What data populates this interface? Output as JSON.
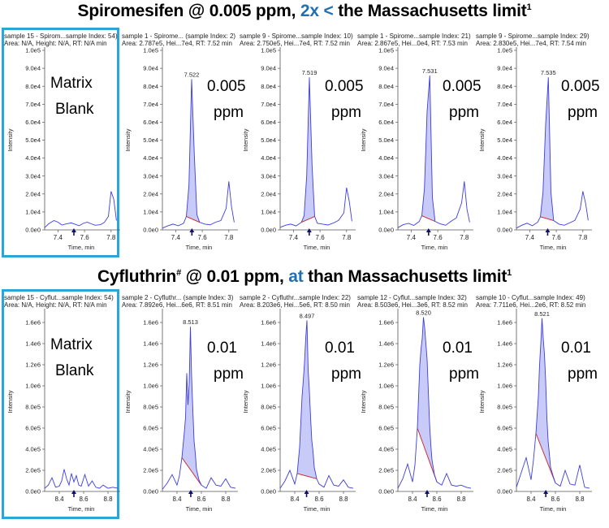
{
  "rows": [
    {
      "title": {
        "pre": "Spiromesifen @ 0.005 ppm, ",
        "hl": "2x <",
        "post": " the  Massachusetts limit",
        "sup": "1"
      },
      "panels": [
        {
          "header1": "sample 15 - Spirom...sample Index: 54)",
          "header2": "Area: N/A, Height: N/A, RT: N/A min",
          "big_line1": "Matrix",
          "big_line2": "Blank",
          "peak_label": "",
          "y_ticks": [
            "1.0e5",
            "9.0e4",
            "8.0e4",
            "7.0e4",
            "6.0e4",
            "5.0e4",
            "4.0e4",
            "3.0e4",
            "2.0e4",
            "1.0e4",
            "0.0e0"
          ],
          "x_ticks": [
            "7.4",
            "7.6",
            "7.8"
          ],
          "x_label": "Time, min",
          "y_label": "Intensity"
        },
        {
          "header1": "sample 1 - Spirome... (sample Index: 2)",
          "header2": "Area: 2.787e5, Hei...7e4, RT: 7.52 min",
          "big_line1": "0.005",
          "big_line2": "ppm",
          "peak_label": "7.522",
          "y_ticks": [
            "1.0e5",
            "9.0e4",
            "8.0e4",
            "7.0e4",
            "6.0e4",
            "5.0e4",
            "4.0e4",
            "3.0e4",
            "2.0e4",
            "1.0e4",
            "0.0e0"
          ],
          "x_ticks": [
            "7.4",
            "7.6",
            "7.8"
          ],
          "x_label": "Time, min",
          "y_label": "Intensity"
        },
        {
          "header1": "sample 9 - Spirome...sample Index: 10)",
          "header2": "Area: 2.750e5, Hei...7e4, RT: 7.52 min",
          "big_line1": "0.005",
          "big_line2": "ppm",
          "peak_label": "7.519",
          "y_ticks": [
            "1.0e5",
            "9.0e4",
            "8.0e4",
            "7.0e4",
            "6.0e4",
            "5.0e4",
            "4.0e4",
            "3.0e4",
            "2.0e4",
            "1.0e4",
            "0.0e0"
          ],
          "x_ticks": [
            "7.4",
            "7.6",
            "7.8"
          ],
          "x_label": "Time, min",
          "y_label": "Intensity"
        },
        {
          "header1": "sample 1 - Spirome...sample Index: 21)",
          "header2": "Area: 2.867e5, Hei...0e4, RT: 7.53 min",
          "big_line1": "0.005",
          "big_line2": "ppm",
          "peak_label": "7.531",
          "y_ticks": [
            "1.0e5",
            "9.0e4",
            "8.0e4",
            "7.0e4",
            "6.0e4",
            "5.0e4",
            "4.0e4",
            "3.0e4",
            "2.0e4",
            "1.0e4",
            "0.0e0"
          ],
          "x_ticks": [
            "7.4",
            "7.6",
            "7.8"
          ],
          "x_label": "Time, min",
          "y_label": "Intensity"
        },
        {
          "header1": "sample 9 - Spirome...sample Index: 29)",
          "header2": "Area: 2.830e5, Hei...7e4, RT: 7.54 min",
          "big_line1": "0.005",
          "big_line2": "ppm",
          "peak_label": "7.535",
          "y_ticks": [
            "1.0e5",
            "9.0e4",
            "8.0e4",
            "7.0e4",
            "6.0e4",
            "5.0e4",
            "4.0e4",
            "3.0e4",
            "2.0e4",
            "1.0e4",
            "0.0e0"
          ],
          "x_ticks": [
            "7.4",
            "7.6",
            "7.8"
          ],
          "x_label": "Time, min",
          "y_label": "Intensity"
        }
      ]
    },
    {
      "title": {
        "pre": "Cyfluthrin",
        "pre_sup": "#",
        "pre2": " @ 0.01 ppm, ",
        "hl": "at",
        "post": " than  Massachusetts limit",
        "sup": "1"
      },
      "panels": [
        {
          "header1": "sample 15 - Cyflut...sample Index: 54)",
          "header2": "Area: N/A, Height: N/A, RT: N/A min",
          "big_line1": "Matrix",
          "big_line2": "Blank",
          "peak_label": "",
          "y_ticks": [
            "1.6e6",
            "1.4e6",
            "1.2e6",
            "1.0e6",
            "8.0e5",
            "6.0e5",
            "4.0e5",
            "2.0e5",
            "0.0e0"
          ],
          "x_ticks": [
            "8.4",
            "8.6",
            "8.8"
          ],
          "x_label": "Time, min",
          "y_label": "Intensity"
        },
        {
          "header1": "sample 2 - Cyfluthr... (sample Index: 3)",
          "header2": "Area: 7.892e6, Hei...6e6, RT: 8.51 min",
          "big_line1": "0.01",
          "big_line2": "ppm",
          "peak_label": "8.513",
          "y_ticks": [
            "1.6e6",
            "1.4e6",
            "1.2e6",
            "1.0e6",
            "8.0e5",
            "6.0e5",
            "4.0e5",
            "2.0e5",
            "0.0e0"
          ],
          "x_ticks": [
            "8.4",
            "8.6",
            "8.8"
          ],
          "x_label": "Time, min",
          "y_label": "Intensity"
        },
        {
          "header1": "sample 2 - Cyfluthr...sample Index: 22)",
          "header2": "Area: 8.203e6, Hei...5e6, RT: 8.50 min",
          "big_line1": "0.01",
          "big_line2": "ppm",
          "peak_label": "8.497",
          "y_ticks": [
            "1.6e6",
            "1.4e6",
            "1.2e6",
            "1.0e6",
            "8.0e5",
            "6.0e5",
            "4.0e5",
            "2.0e5",
            "0.0e0"
          ],
          "x_ticks": [
            "8.4",
            "8.6",
            "8.8"
          ],
          "x_label": "Time, min",
          "y_label": "Intensity"
        },
        {
          "header1": "sample 12 - Cyflut...sample Index: 32)",
          "header2": "Area: 8.503e6, Hei...3e6, RT: 8.52 min",
          "big_line1": "0.01",
          "big_line2": "ppm",
          "peak_label": "8.520",
          "y_ticks": [
            "1.6e6",
            "1.4e6",
            "1.2e6",
            "1.0e6",
            "8.0e5",
            "6.0e5",
            "4.0e5",
            "2.0e5",
            "0.0e0"
          ],
          "x_ticks": [
            "8.4",
            "8.6",
            "8.8"
          ],
          "x_label": "Time, min",
          "y_label": "Intensity"
        },
        {
          "header1": "sample 10 - Cyflut...sample Index: 49)",
          "header2": "Area: 7.711e6, Hei...2e6, RT: 8.52 min",
          "big_line1": "0.01",
          "big_line2": "ppm",
          "peak_label": "8.521",
          "y_ticks": [
            "1.6e6",
            "1.4e6",
            "1.2e6",
            "1.0e6",
            "8.0e5",
            "6.0e5",
            "4.0e5",
            "2.0e5",
            "0.0e0"
          ],
          "x_ticks": [
            "8.4",
            "8.6",
            "8.8"
          ],
          "x_label": "Time, min",
          "y_label": "Intensity"
        }
      ]
    }
  ],
  "chart_data": [
    {
      "type": "line",
      "title": "Spiromesifen @ 0.005 ppm, 2x < the Massachusetts limit",
      "xlabel": "Time, min",
      "ylabel": "Intensity",
      "xlim": [
        7.3,
        7.85
      ],
      "ylim": [
        0,
        100000
      ],
      "series": [
        {
          "name": "Matrix Blank",
          "x": [
            7.3,
            7.33,
            7.37,
            7.4,
            7.43,
            7.46,
            7.5,
            7.53,
            7.56,
            7.59,
            7.62,
            7.65,
            7.68,
            7.72,
            7.75,
            7.78,
            7.8,
            7.82,
            7.84
          ],
          "y": [
            1200,
            3400,
            5200,
            4300,
            2700,
            3300,
            3900,
            3100,
            2300,
            3600,
            4300,
            3400,
            2600,
            2900,
            4200,
            7500,
            21500,
            17000,
            5200
          ]
        },
        {
          "name": "0.005 ppm (sample Index 2)",
          "peak_rt": 7.522,
          "area": 278700,
          "x": [
            7.3,
            7.34,
            7.38,
            7.42,
            7.46,
            7.48,
            7.5,
            7.52,
            7.54,
            7.56,
            7.58,
            7.62,
            7.66,
            7.7,
            7.74,
            7.78,
            7.8,
            7.82,
            7.84
          ],
          "y": [
            1000,
            2200,
            3200,
            2300,
            3700,
            7500,
            25000,
            84000,
            42000,
            8500,
            4200,
            3200,
            2800,
            4300,
            5200,
            12000,
            27000,
            13000,
            4200
          ]
        },
        {
          "name": "0.005 ppm (sample Index 10)",
          "peak_rt": 7.519,
          "area": 275000,
          "x": [
            7.3,
            7.34,
            7.38,
            7.42,
            7.46,
            7.48,
            7.5,
            7.52,
            7.54,
            7.56,
            7.58,
            7.62,
            7.66,
            7.7,
            7.74,
            7.78,
            7.8,
            7.82,
            7.84
          ],
          "y": [
            1400,
            2600,
            3200,
            2200,
            4200,
            7900,
            30000,
            85000,
            36000,
            7500,
            3700,
            3200,
            2700,
            3800,
            5300,
            9500,
            23500,
            16000,
            4800
          ]
        },
        {
          "name": "0.005 ppm (sample Index 21)",
          "peak_rt": 7.531,
          "area": 286700,
          "x": [
            7.3,
            7.34,
            7.38,
            7.42,
            7.46,
            7.48,
            7.5,
            7.52,
            7.54,
            7.56,
            7.58,
            7.62,
            7.66,
            7.7,
            7.74,
            7.78,
            7.8,
            7.82,
            7.84
          ],
          "y": [
            1200,
            2900,
            3600,
            2500,
            4600,
            7900,
            23000,
            66000,
            86000,
            18000,
            4700,
            3300,
            2600,
            4800,
            6700,
            15000,
            27000,
            11500,
            4200
          ]
        },
        {
          "name": "0.005 ppm (sample Index 29)",
          "peak_rt": 7.535,
          "area": 283000,
          "x": [
            7.3,
            7.34,
            7.38,
            7.42,
            7.46,
            7.48,
            7.5,
            7.52,
            7.54,
            7.56,
            7.58,
            7.62,
            7.66,
            7.7,
            7.74,
            7.78,
            7.8,
            7.82,
            7.84
          ],
          "y": [
            1000,
            2600,
            3700,
            2300,
            4300,
            7300,
            21000,
            59000,
            85000,
            21000,
            5200,
            3200,
            2600,
            3900,
            5300,
            11500,
            21500,
            15000,
            5300
          ]
        }
      ]
    },
    {
      "type": "line",
      "title": "Cyfluthrin @ 0.01 ppm, at than Massachusetts limit",
      "xlabel": "Time, min",
      "ylabel": "Intensity",
      "xlim": [
        8.28,
        8.88
      ],
      "ylim": [
        0,
        1700000
      ],
      "series": [
        {
          "name": "Matrix Blank",
          "x": [
            8.28,
            8.31,
            8.34,
            8.37,
            8.4,
            8.42,
            8.44,
            8.46,
            8.48,
            8.5,
            8.52,
            8.54,
            8.56,
            8.58,
            8.61,
            8.64,
            8.67,
            8.7,
            8.73,
            8.76,
            8.8,
            8.84,
            8.88
          ],
          "y": [
            30000,
            60000,
            130000,
            40000,
            50000,
            100000,
            210000,
            120000,
            60000,
            170000,
            90000,
            150000,
            60000,
            50000,
            160000,
            50000,
            100000,
            40000,
            30000,
            60000,
            30000,
            40000,
            30000
          ]
        },
        {
          "name": "0.01 ppm (sample Index 3)",
          "peak_rt": 8.513,
          "area": 7892000,
          "x": [
            8.28,
            8.32,
            8.36,
            8.4,
            8.42,
            8.44,
            8.46,
            8.47,
            8.48,
            8.49,
            8.5,
            8.51,
            8.52,
            8.53,
            8.54,
            8.55,
            8.56,
            8.58,
            8.6,
            8.64,
            8.68,
            8.72,
            8.76,
            8.8,
            8.84,
            8.88
          ],
          "y": [
            20000,
            80000,
            160000,
            60000,
            150000,
            320000,
            560000,
            700000,
            1120000,
            820000,
            1020000,
            1560000,
            1080000,
            770000,
            480000,
            360000,
            210000,
            110000,
            60000,
            30000,
            130000,
            60000,
            50000,
            120000,
            40000,
            30000
          ]
        },
        {
          "name": "0.01 ppm (sample Index 22)",
          "peak_rt": 8.497,
          "area": 8203000,
          "x": [
            8.28,
            8.32,
            8.36,
            8.4,
            8.42,
            8.44,
            8.46,
            8.47,
            8.48,
            8.49,
            8.5,
            8.51,
            8.52,
            8.53,
            8.54,
            8.55,
            8.56,
            8.58,
            8.6,
            8.64,
            8.68,
            8.72,
            8.76,
            8.8,
            8.84,
            8.88
          ],
          "y": [
            30000,
            100000,
            200000,
            70000,
            170000,
            420000,
            900000,
            1050000,
            1220000,
            1450000,
            1620000,
            1150000,
            950000,
            700000,
            480000,
            380000,
            230000,
            120000,
            70000,
            40000,
            150000,
            60000,
            50000,
            110000,
            40000,
            30000
          ]
        },
        {
          "name": "0.01 ppm (sample Index 32)",
          "peak_rt": 8.52,
          "area": 8503000,
          "x": [
            8.28,
            8.32,
            8.36,
            8.4,
            8.42,
            8.44,
            8.46,
            8.47,
            8.48,
            8.49,
            8.5,
            8.51,
            8.52,
            8.53,
            8.54,
            8.55,
            8.56,
            8.58,
            8.6,
            8.64,
            8.68,
            8.72,
            8.76,
            8.8,
            8.84,
            8.88
          ],
          "y": [
            30000,
            120000,
            260000,
            90000,
            250000,
            600000,
            1200000,
            1350000,
            1450000,
            1650000,
            1550000,
            1400000,
            1250000,
            950000,
            650000,
            450000,
            300000,
            160000,
            90000,
            60000,
            170000,
            60000,
            50000,
            60000,
            40000,
            30000
          ]
        },
        {
          "name": "0.01 ppm (sample Index 49)",
          "peak_rt": 8.521,
          "area": 7711000,
          "x": [
            8.28,
            8.32,
            8.36,
            8.4,
            8.42,
            8.44,
            8.46,
            8.47,
            8.48,
            8.49,
            8.5,
            8.51,
            8.52,
            8.53,
            8.54,
            8.55,
            8.56,
            8.58,
            8.6,
            8.64,
            8.68,
            8.72,
            8.76,
            8.8,
            8.84,
            8.88
          ],
          "y": [
            40000,
            180000,
            320000,
            110000,
            300000,
            550000,
            900000,
            1200000,
            1400000,
            1640000,
            1450000,
            1300000,
            1050000,
            700000,
            480000,
            360000,
            230000,
            150000,
            80000,
            50000,
            200000,
            70000,
            60000,
            250000,
            40000,
            30000
          ]
        }
      ]
    }
  ]
}
